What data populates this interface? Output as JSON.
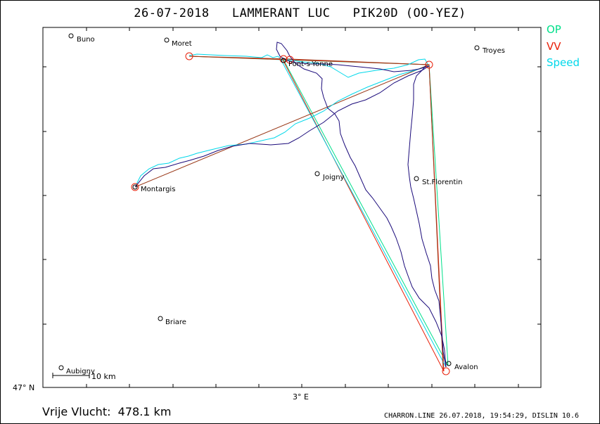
{
  "header": {
    "date": "26-07-2018",
    "pilot": "LAMMERANT LUC",
    "glider": "PIK20D (OO-YEZ)"
  },
  "legend": [
    {
      "label": "OP",
      "color": "#00e08a"
    },
    {
      "label": "VV",
      "color": "#e8200a"
    },
    {
      "label": "Speed",
      "color": "#00d8ea"
    }
  ],
  "axes": {
    "longitude_label": "3° E",
    "latitude_label": "47° N"
  },
  "scale_bar": {
    "label": "10 km"
  },
  "towns": [
    {
      "name": "Buno"
    },
    {
      "name": "Moret"
    },
    {
      "name": "Troyes"
    },
    {
      "name": "Pont-s-Yonne"
    },
    {
      "name": "Joigny"
    },
    {
      "name": "St.Florentin"
    },
    {
      "name": "Montargis"
    },
    {
      "name": "Briare"
    },
    {
      "name": "Avalon"
    },
    {
      "name": "Aubigny"
    }
  ],
  "footer": {
    "label": "Vrije Vlucht:",
    "distance": "478.1 km",
    "info": "CHARRON.LINE 26.07.2018, 19:54:29, DISLIN 10.6"
  },
  "colors": {
    "track": "#1a0a7a",
    "task_op": "#00e08a",
    "task_vv": "#e8200a",
    "task_speed": "#00d8ea",
    "task_brown": "#9a3a1a"
  }
}
